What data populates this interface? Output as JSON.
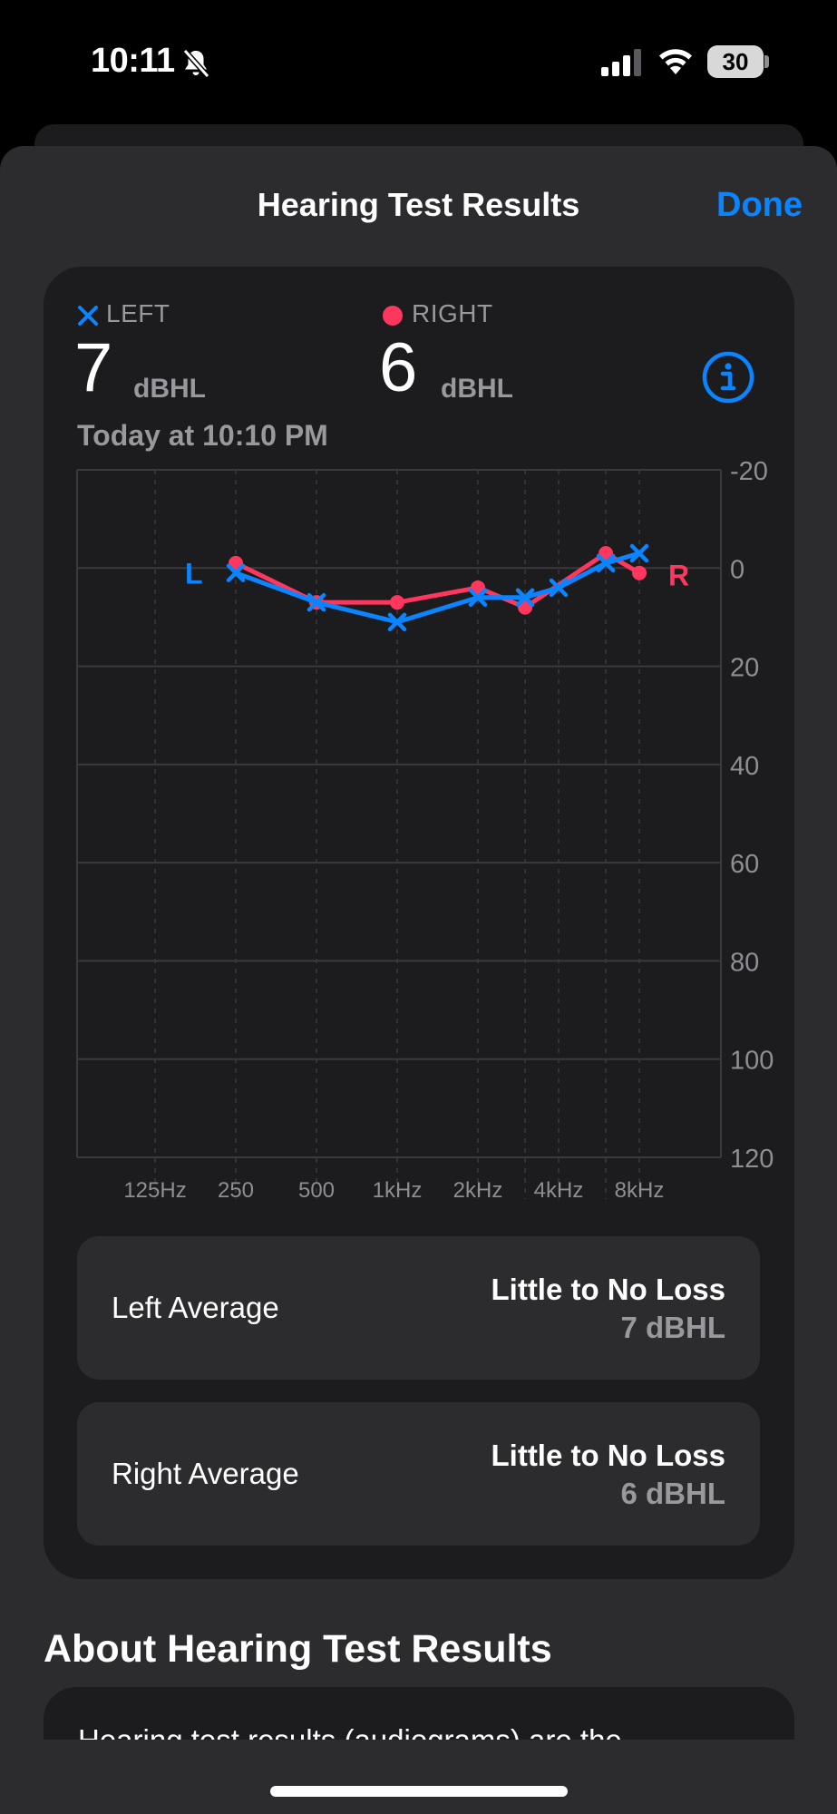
{
  "status_bar": {
    "time": "10:11",
    "battery": "30",
    "icons": [
      "bell-slash-icon",
      "cellular-signal-icon",
      "wifi-icon",
      "battery-icon"
    ]
  },
  "header": {
    "title": "Hearing Test Results",
    "done_label": "Done"
  },
  "summary": {
    "left": {
      "label": "LEFT",
      "value": "7",
      "unit": "dBHL",
      "color": "#0a84ff",
      "marker_icon": "x-mark-icon"
    },
    "right": {
      "label": "RIGHT",
      "value": "6",
      "unit": "dBHL",
      "color": "#ff375f",
      "marker_icon": "filled-circle-icon"
    },
    "date": "Today at 10:10 PM",
    "info_icon": "info-circle-icon"
  },
  "chart_data": {
    "type": "line",
    "x": [
      "125Hz",
      "250",
      "500",
      "1kHz",
      "2kHz",
      "4kHz",
      "8kHz"
    ],
    "y_ticks": [
      "-20",
      "0",
      "20",
      "40",
      "60",
      "80",
      "100",
      "120"
    ],
    "ylim": [
      -20,
      120
    ],
    "y_inverted": true,
    "grid": true,
    "series": [
      {
        "name": "R",
        "color": "#ff375f",
        "marker": "circle",
        "points": [
          {
            "freq": 250,
            "db": -1
          },
          {
            "freq": 500,
            "db": 7
          },
          {
            "freq": 1000,
            "db": 7
          },
          {
            "freq": 2000,
            "db": 4
          },
          {
            "freq": 3000,
            "db": 8
          },
          {
            "freq": 6000,
            "db": -3
          },
          {
            "freq": 8000,
            "db": 1
          }
        ]
      },
      {
        "name": "L",
        "color": "#0a84ff",
        "marker": "x",
        "points": [
          {
            "freq": 250,
            "db": 1
          },
          {
            "freq": 500,
            "db": 7
          },
          {
            "freq": 1000,
            "db": 11
          },
          {
            "freq": 2000,
            "db": 6
          },
          {
            "freq": 3000,
            "db": 6
          },
          {
            "freq": 4000,
            "db": 4
          },
          {
            "freq": 6000,
            "db": -1
          },
          {
            "freq": 8000,
            "db": -3
          }
        ]
      }
    ]
  },
  "averages": [
    {
      "label": "Left Average",
      "status": "Little to No Loss",
      "value": "7 dBHL"
    },
    {
      "label": "Right Average",
      "status": "Little to No Loss",
      "value": "6 dBHL"
    }
  ],
  "about": {
    "title": "About Hearing Test Results",
    "text": "Hearing test results (audiograms) are the"
  }
}
